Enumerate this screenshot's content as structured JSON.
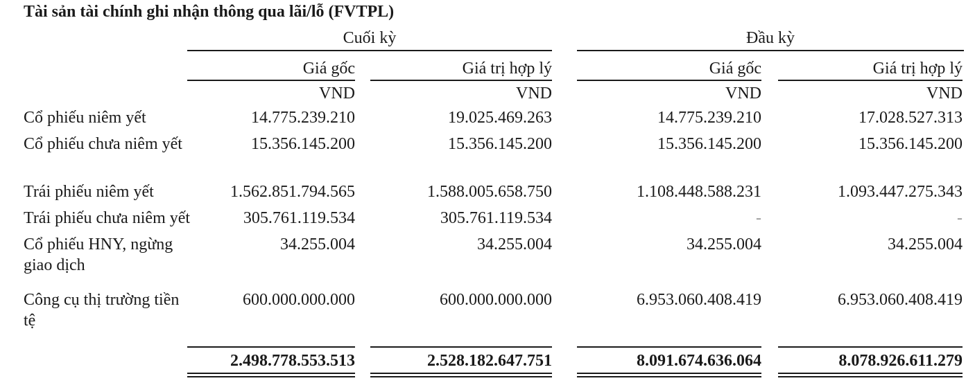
{
  "title": "Tài sản tài chính ghi nhận thông qua lãi/lỗ (FVTPL)",
  "groups": {
    "end_period": "Cuối kỳ",
    "begin_period": "Đầu kỳ"
  },
  "columns": [
    "Giá gốc",
    "Giá trị hợp lý",
    "Giá gốc",
    "Giá trị hợp lý"
  ],
  "currency": [
    "VND",
    "VND",
    "VND",
    "VND"
  ],
  "rows": [
    {
      "label": "Cổ phiếu niêm yết",
      "values": [
        "14.775.239.210",
        "19.025.469.263",
        "14.775.239.210",
        "17.028.527.313"
      ]
    },
    {
      "label": "Cổ phiếu chưa niêm yết",
      "values": [
        "15.356.145.200",
        "15.356.145.200",
        "15.356.145.200",
        "15.356.145.200"
      ]
    },
    {
      "label": "Trái phiếu niêm yết",
      "values": [
        "1.562.851.794.565",
        "1.588.005.658.750",
        "1.108.448.588.231",
        "1.093.447.275.343"
      ]
    },
    {
      "label": "Trái phiếu chưa niêm yết",
      "values": [
        "305.761.119.534",
        "305.761.119.534",
        "-",
        "-"
      ]
    },
    {
      "label": "Cổ phiếu HNY, ngừng giao dịch",
      "values": [
        "34.255.004",
        "34.255.004",
        "34.255.004",
        "34.255.004"
      ]
    },
    {
      "label": "Công cụ thị trường tiền tệ",
      "values": [
        "600.000.000.000",
        "600.000.000.000",
        "6.953.060.408.419",
        "6.953.060.408.419"
      ]
    }
  ],
  "totals": [
    "2.498.778.553.513",
    "2.528.182.647.751",
    "8.091.674.636.064",
    "8.078.926.611.279"
  ]
}
